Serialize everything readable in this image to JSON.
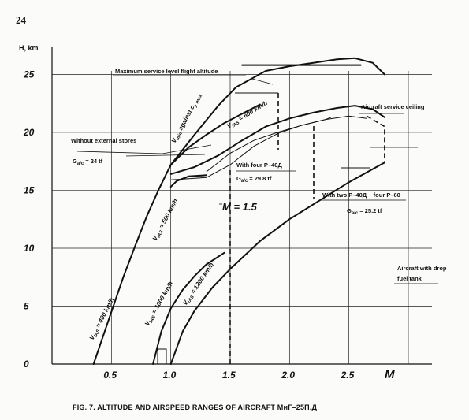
{
  "page_number": "24",
  "chart_data": {
    "type": "line",
    "xlabel": "M",
    "ylabel": "H, km",
    "x_ticks": [
      "0.5",
      "1.0",
      "1.5",
      "2.0",
      "2.5"
    ],
    "y_ticks": [
      "0",
      "5",
      "10",
      "15",
      "20",
      "25"
    ],
    "xlim": [
      0,
      3.0
    ],
    "ylim": [
      0,
      27
    ],
    "series": [
      {
        "name": "V_IAS = 400 km/h",
        "label_parts": [
          "V",
          "IAS",
          " = 400 km/h"
        ],
        "x": [
          0.35,
          0.5,
          0.6,
          0.7,
          0.8,
          0.9,
          1.0
        ],
        "y": [
          0,
          4.5,
          7.5,
          10.2,
          12.8,
          15.1,
          17.2
        ]
      },
      {
        "name": "V_IAS = 500 km/h",
        "label_parts": [
          "V",
          "IAS",
          " = 500 km/h"
        ],
        "x": [
          1.0,
          1.05,
          1.15,
          1.3
        ],
        "y": [
          15.3,
          15.8,
          16.2,
          16.3
        ]
      },
      {
        "name": "V_IAS = 600 km/h",
        "label_parts": [
          "V",
          "IAS",
          " = 600 km/h"
        ],
        "x": [
          1.0,
          1.15,
          1.3,
          1.45,
          1.6,
          1.75
        ],
        "y": [
          17.2,
          18.7,
          19.8,
          20.8,
          21.6,
          22.4
        ]
      },
      {
        "name": "V_IAS = 1000 km/h",
        "label_parts": [
          "V",
          "IAS",
          " = 1000 km/h"
        ],
        "x": [
          0.85,
          0.92,
          1.0,
          1.1,
          1.2,
          1.3,
          1.45
        ],
        "y": [
          0,
          2.8,
          4.8,
          6.4,
          7.6,
          8.6,
          9.6
        ]
      },
      {
        "name": "V_IAS = 1200 km/h",
        "label_parts": [
          "V",
          "IAS",
          " = 1200 km/h"
        ],
        "x": [
          1.0,
          1.1,
          1.2,
          1.35,
          1.5,
          1.75,
          2.0,
          2.25,
          2.5,
          2.8
        ],
        "y": [
          0,
          2.8,
          4.6,
          6.6,
          8.2,
          10.6,
          12.5,
          14.1,
          15.7,
          17.4
        ]
      },
      {
        "name": "Aircraft service ceiling",
        "x": [
          1.0,
          1.2,
          1.4,
          1.55,
          1.8,
          2.0,
          2.2,
          2.4,
          2.55,
          2.7,
          2.8
        ],
        "y": [
          17.2,
          19.8,
          22.3,
          23.9,
          25.3,
          25.7,
          26.0,
          26.3,
          26.4,
          26.0,
          25.0
        ]
      },
      {
        "name": "Maximum service level flight altitude",
        "x": [
          1.6,
          2.6
        ],
        "y": [
          25.8,
          25.8
        ]
      },
      {
        "name": "Without external stores",
        "x": [
          1.0,
          1.2,
          1.4,
          1.6,
          1.8,
          2.0,
          2.2,
          2.4,
          2.55,
          2.7,
          2.8
        ],
        "y": [
          16.4,
          17.0,
          18.0,
          19.3,
          20.5,
          21.2,
          21.7,
          22.1,
          22.3,
          22.0,
          21.3
        ]
      },
      {
        "name": "With four P-40 Д",
        "x": [
          1.0,
          1.3,
          1.5,
          1.7,
          1.9,
          2.1,
          2.3,
          2.5,
          2.65
        ],
        "y": [
          15.9,
          16.1,
          17.2,
          18.8,
          19.9,
          20.6,
          21.1,
          21.4,
          21.2
        ]
      },
      {
        "name": "With two P-40 Д + four P-60",
        "x": [
          1.3,
          1.5,
          1.7,
          1.9,
          2.1,
          2.3,
          2.35
        ],
        "y": [
          16.6,
          18.2,
          19.3,
          20.0,
          20.6,
          21.1,
          21.3
        ]
      },
      {
        "name": "Aircraft with drop fuel tank",
        "x": [
          2.65,
          2.8,
          2.8
        ],
        "y": [
          21.4,
          20.5,
          17.4
        ]
      },
      {
        "name": "M = 1.5",
        "x": [
          1.5,
          1.5
        ],
        "y": [
          0,
          17.0
        ]
      }
    ],
    "annotations": [
      {
        "text": "Maximum service level flight altitude"
      },
      {
        "text": "Aircraft service ceiling"
      },
      {
        "text": "Without external stores"
      },
      {
        "text": "G_a/c = 24 tf",
        "label_parts": [
          "G",
          "a/c",
          " = 24 tf"
        ]
      },
      {
        "text": "With four P–40Д"
      },
      {
        "text": "G_a/c = 29.8 tf",
        "label_parts": [
          "G",
          "a/c",
          " = 29.8 tf"
        ]
      },
      {
        "text": "With two P–40Д + four P–60"
      },
      {
        "text": "G_a/c = 25.2 tf",
        "label_parts": [
          "G",
          "a/c",
          " = 25.2 tf"
        ]
      },
      {
        "text": "Aircraft with drop"
      },
      {
        "text": "fuel tank"
      },
      {
        "text": "V_min against c_y max",
        "label_parts": [
          "V",
          "min",
          " against c",
          "y max"
        ]
      },
      {
        "text": "M = 1.5"
      }
    ],
    "caption": "FIG. 7. ALTITUDE AND AIRSPEED RANGES OF AIRCRAFT МиГ–25П.Д"
  }
}
